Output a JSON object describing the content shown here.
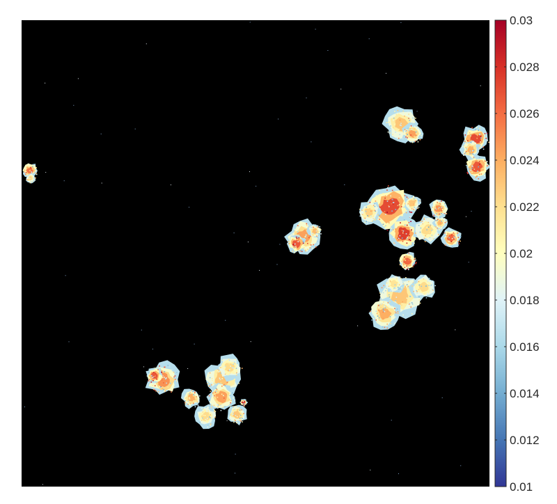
{
  "chart_data": {
    "type": "heatmap",
    "title": "",
    "xlabel": "",
    "ylabel": "",
    "background_color": "#000000",
    "colormap": "RdYlBu_r",
    "colorbar": {
      "min": 0.01,
      "max": 0.03,
      "position": "right",
      "ticks": [
        0.01,
        0.012,
        0.014,
        0.016,
        0.018,
        0.02,
        0.022,
        0.024,
        0.026,
        0.028,
        0.03
      ],
      "tick_labels": [
        "0.01",
        "0.012",
        "0.014",
        "0.016",
        "0.018",
        "0.02",
        "0.022",
        "0.024",
        "0.026",
        "0.028",
        "0.03"
      ],
      "colors": [
        "#313695",
        "#4575b4",
        "#74add1",
        "#abd9e9",
        "#e0f3f8",
        "#ffffbf",
        "#fee090",
        "#fdae61",
        "#f46d43",
        "#d73027",
        "#a50026"
      ]
    }
  }
}
